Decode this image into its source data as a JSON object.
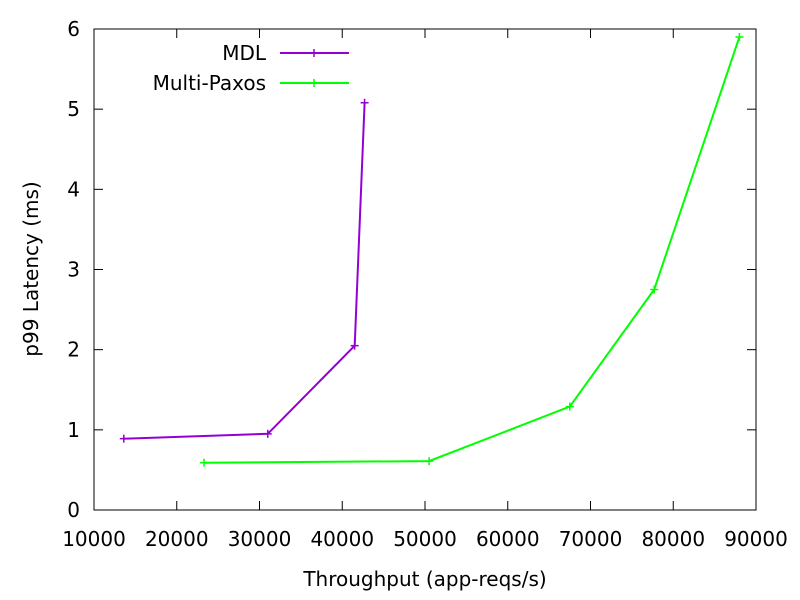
{
  "chart_data": {
    "type": "line",
    "xlabel": "Throughput (app-reqs/s)",
    "ylabel": "p99 Latency (ms)",
    "xlim": [
      10000,
      90000
    ],
    "ylim": [
      0,
      6
    ],
    "xticks": [
      10000,
      20000,
      30000,
      40000,
      50000,
      60000,
      70000,
      80000,
      90000
    ],
    "yticks": [
      0,
      1,
      2,
      3,
      4,
      5,
      6
    ],
    "grid": false,
    "legend_position": "top-left",
    "series": [
      {
        "name": "MDL",
        "color": "#9400d3",
        "marker": "plus",
        "points": [
          {
            "x": 13600,
            "y": 0.89
          },
          {
            "x": 31000,
            "y": 0.95
          },
          {
            "x": 41500,
            "y": 2.05
          },
          {
            "x": 42700,
            "y": 5.08
          }
        ]
      },
      {
        "name": "Multi-Paxos",
        "color": "#00ff00",
        "marker": "plus",
        "points": [
          {
            "x": 23300,
            "y": 0.59
          },
          {
            "x": 50500,
            "y": 0.61
          },
          {
            "x": 67500,
            "y": 1.29
          },
          {
            "x": 77700,
            "y": 2.75
          },
          {
            "x": 88000,
            "y": 5.9
          }
        ]
      }
    ]
  }
}
